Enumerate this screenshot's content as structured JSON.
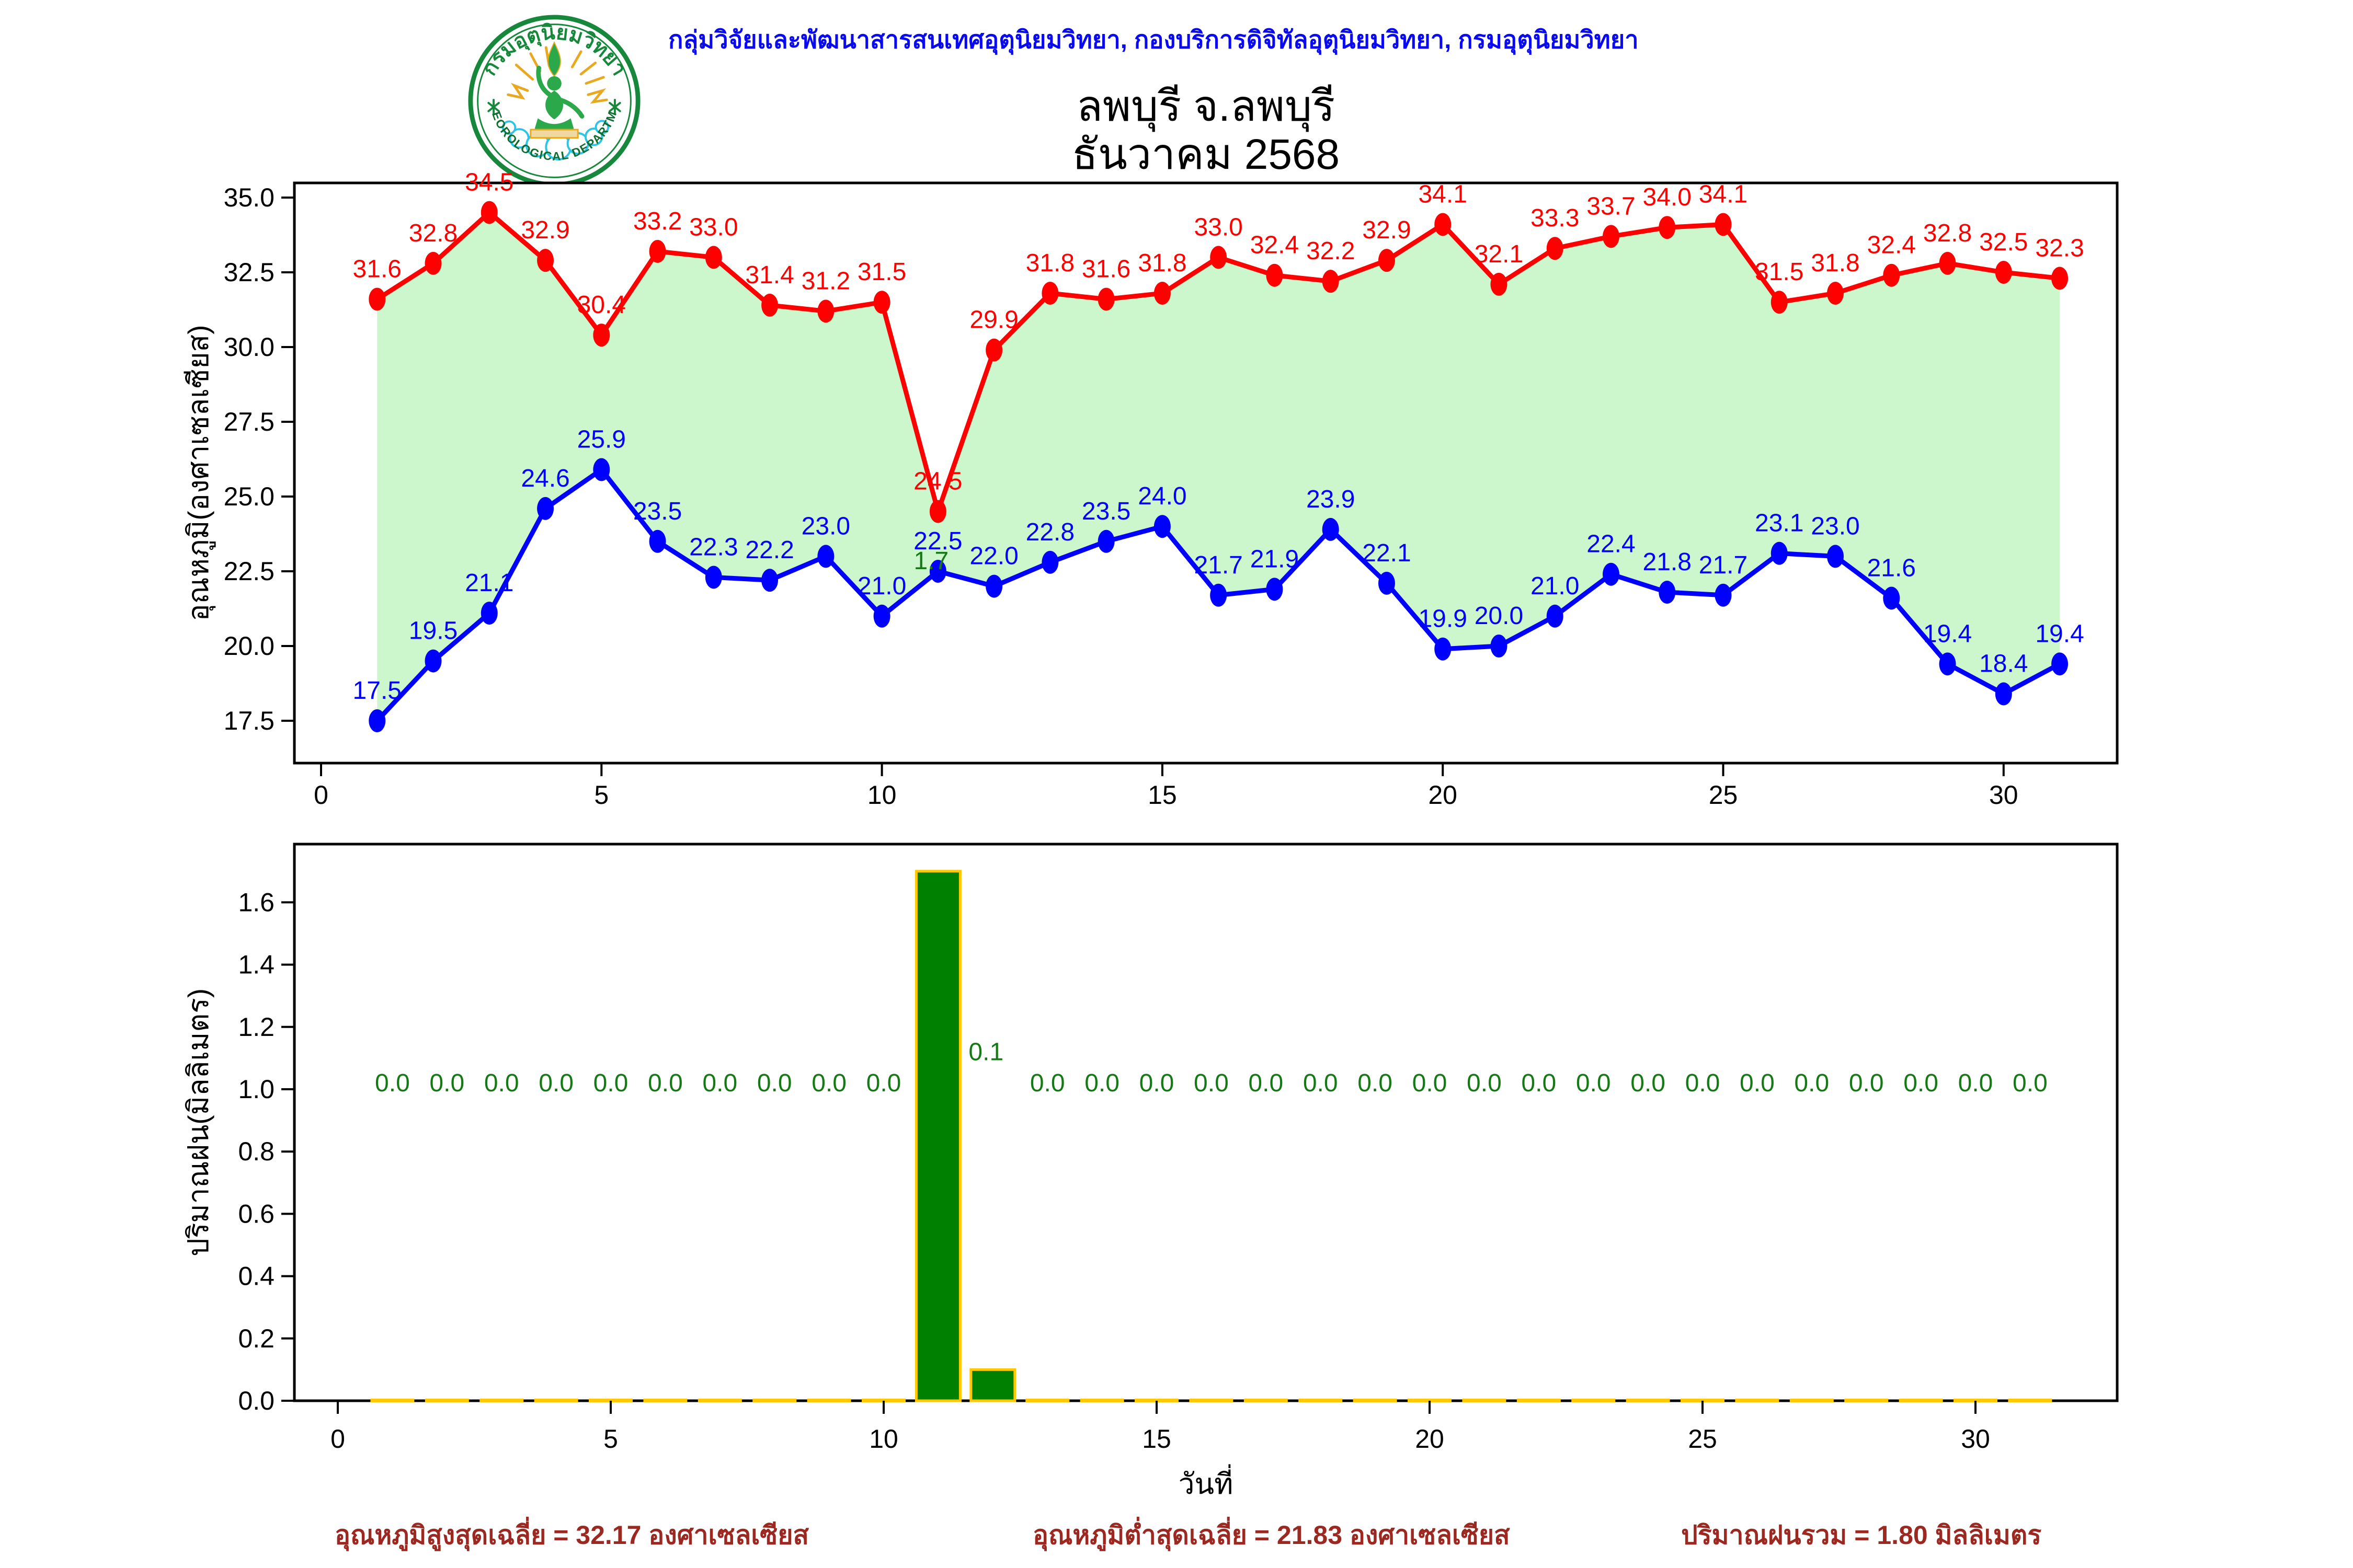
{
  "header": {
    "agency_line": "กลุ่มวิจัยและพัฒนาสารสนเทศอุตุนิยมวิทยา, กองบริการดิจิทัลอุตุนิยมวิทยา, กรมอุตุนิยมวิทยา"
  },
  "logo": {
    "thai_text": "กรมอุตุนิยมวิทยา",
    "english_text": "METEOROLOGICAL DEPARTMENT"
  },
  "title": {
    "line1": "ลพบุรี จ.ลพบุรี",
    "line2": "ธันวาคม 2568"
  },
  "footer": {
    "avg_max": "อุณหภูมิสูงสุดเฉลี่ย = 32.17 องศาเซลเซียส",
    "avg_min": "อุณหภูมิต่ำสุดเฉลี่ย = 21.83 องศาเซลเซียส",
    "total_rain": "ปริมาณฝนรวม = 1.80 มิลลิเมตร"
  },
  "colors": {
    "header_text": "#0a0af0",
    "title_text": "#000000",
    "footer_text": "#9c2921",
    "logo_green": "#17883b",
    "logo_gold": "#e8a820",
    "cloud_cyan": "#2ec4e8"
  },
  "chart_data": [
    {
      "type": "line",
      "x": [
        1,
        2,
        3,
        4,
        5,
        6,
        7,
        8,
        9,
        10,
        11,
        12,
        13,
        14,
        15,
        16,
        17,
        18,
        19,
        20,
        21,
        22,
        23,
        24,
        25,
        26,
        27,
        28,
        29,
        30,
        31
      ],
      "series": [
        {
          "name": "max_temperature",
          "color": "#ff0000",
          "values": [
            31.6,
            32.8,
            34.5,
            32.9,
            30.4,
            33.2,
            33.0,
            31.4,
            31.2,
            31.5,
            24.5,
            29.9,
            31.8,
            31.6,
            31.8,
            33.0,
            32.4,
            32.2,
            32.9,
            34.1,
            32.1,
            33.3,
            33.7,
            34.0,
            34.1,
            31.5,
            31.8,
            32.4,
            32.8,
            32.5,
            32.3
          ]
        },
        {
          "name": "min_temperature",
          "color": "#0000ff",
          "values": [
            17.5,
            19.5,
            21.1,
            24.6,
            25.9,
            23.5,
            22.3,
            22.2,
            23.0,
            21.0,
            22.5,
            22.0,
            22.8,
            23.5,
            24.0,
            21.7,
            21.9,
            23.9,
            22.1,
            19.9,
            20.0,
            21.0,
            22.4,
            21.8,
            21.7,
            23.1,
            23.0,
            21.6,
            19.4,
            18.4,
            19.4
          ]
        }
      ],
      "ylabel": "อุณหภูมิ(องศาเซลเซียส)",
      "xticks": [
        0,
        5,
        10,
        15,
        20,
        25,
        30
      ],
      "yticks": [
        17.5,
        20.0,
        22.5,
        25.0,
        27.5,
        30.0,
        32.5,
        35.0
      ],
      "xlim": [
        -0.5,
        32.5
      ],
      "ylim": [
        16.6,
        35.4
      ],
      "grid": false,
      "legend": null,
      "fill_between_color": "#ccf6cc",
      "annotations": [
        {
          "text": "1.7",
          "x": 11,
          "y": 22.5,
          "color": "#157a15"
        }
      ]
    },
    {
      "type": "bar",
      "x": [
        1,
        2,
        3,
        4,
        5,
        6,
        7,
        8,
        9,
        10,
        11,
        12,
        13,
        14,
        15,
        16,
        17,
        18,
        19,
        20,
        21,
        22,
        23,
        24,
        25,
        26,
        27,
        28,
        29,
        30,
        31
      ],
      "values": [
        0.0,
        0.0,
        0.0,
        0.0,
        0.0,
        0.0,
        0.0,
        0.0,
        0.0,
        0.0,
        1.7,
        0.1,
        0.0,
        0.0,
        0.0,
        0.0,
        0.0,
        0.0,
        0.0,
        0.0,
        0.0,
        0.0,
        0.0,
        0.0,
        0.0,
        0.0,
        0.0,
        0.0,
        0.0,
        0.0,
        0.0
      ],
      "bar_color": "#008000",
      "bar_edge_color": "#ffc800",
      "value_label_color": "#157a15",
      "ylabel": "ปริมาณฝน(มิลลิเมตร)",
      "xlabel": "วันที่",
      "xticks": [
        0,
        5,
        10,
        15,
        20,
        25,
        30
      ],
      "yticks": [
        0.0,
        0.2,
        0.4,
        0.6,
        0.8,
        1.0,
        1.2,
        1.4,
        1.6
      ],
      "xlim": [
        -0.94,
        32.94
      ],
      "ylim": [
        0,
        1.787
      ],
      "grid": false
    }
  ]
}
